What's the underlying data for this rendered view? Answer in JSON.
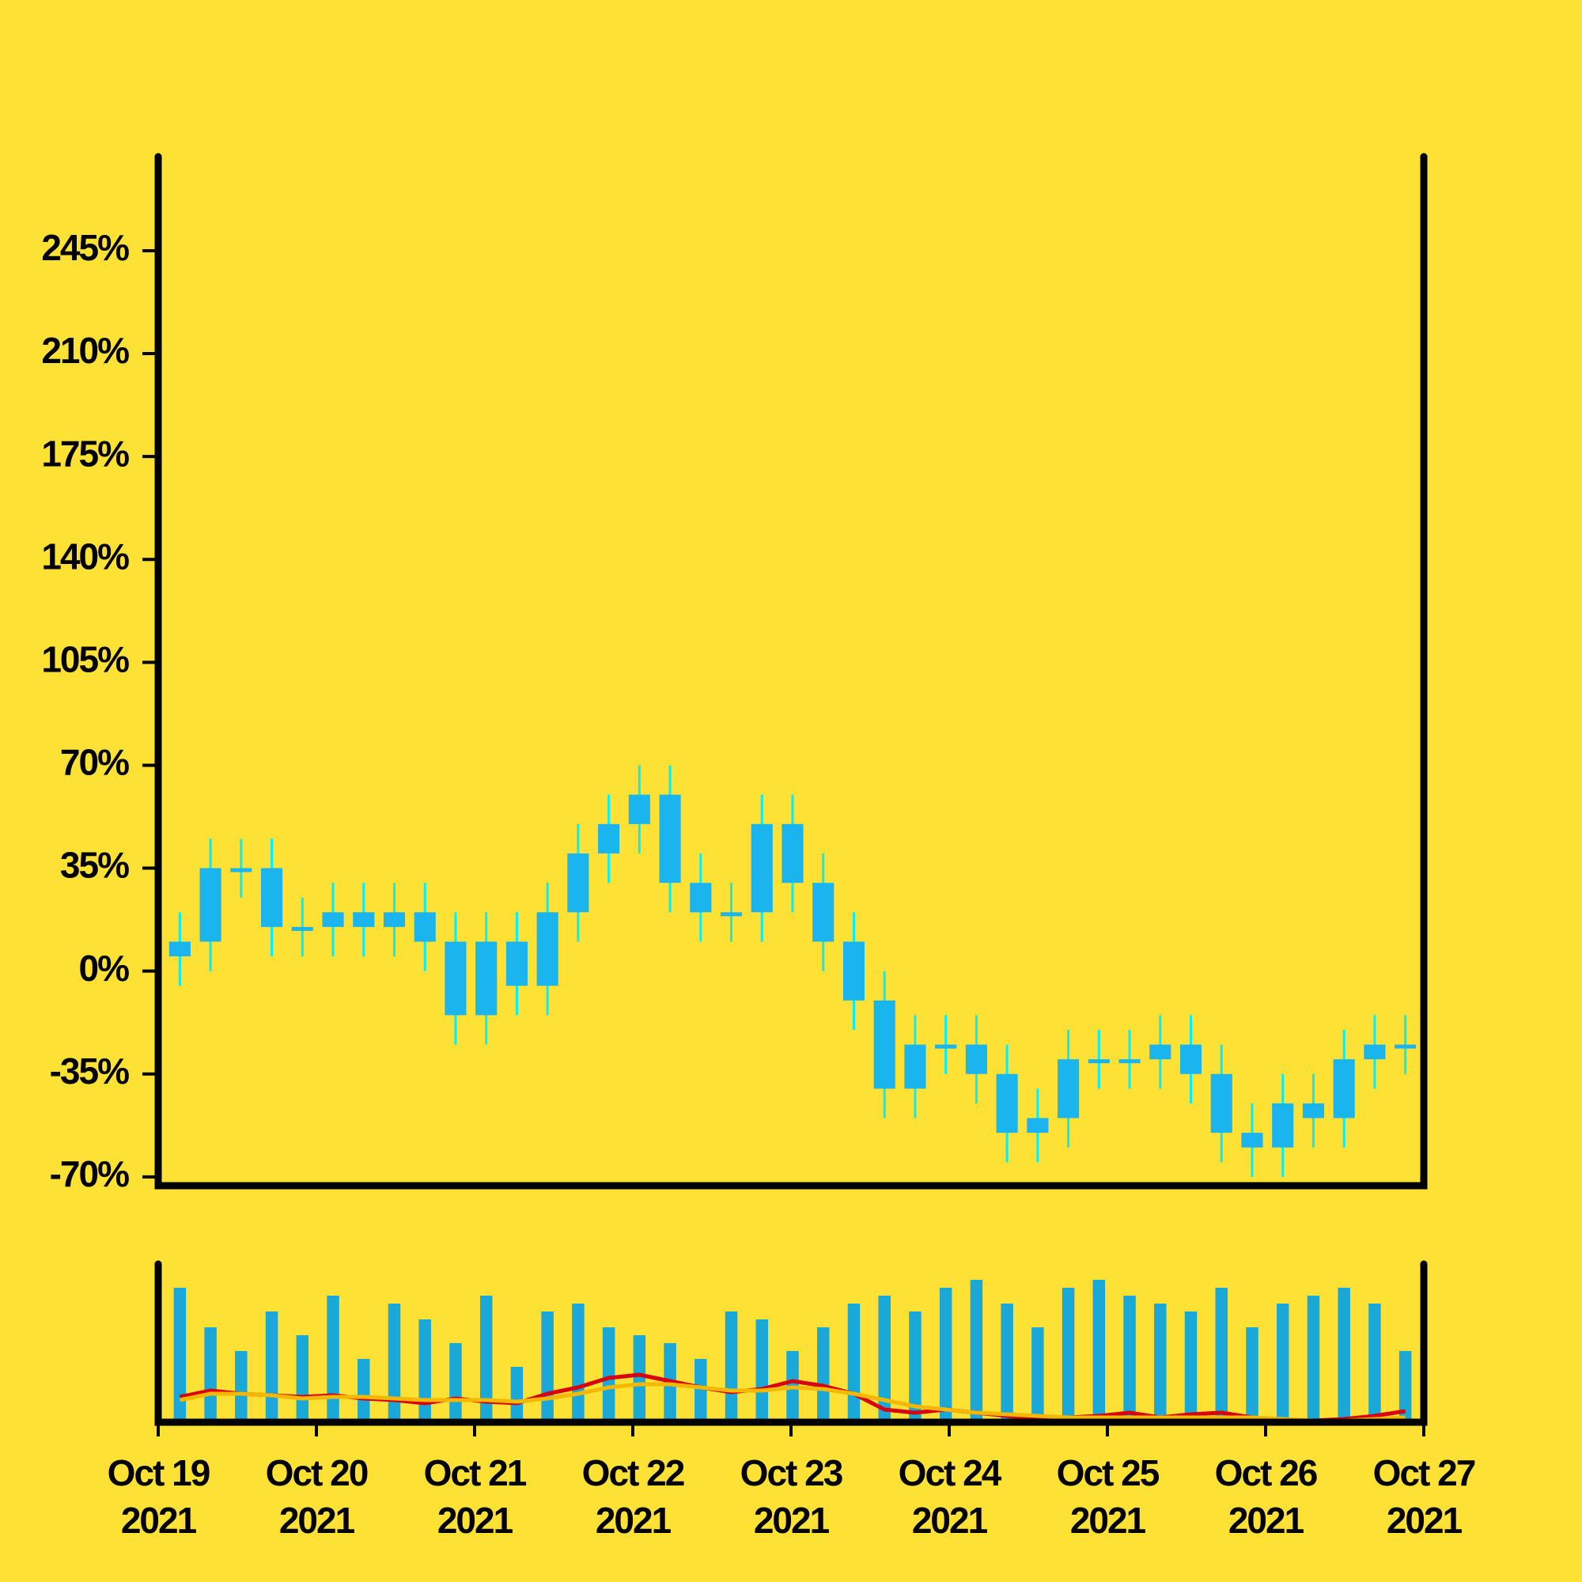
{
  "chart_data": [
    {
      "type": "candlestick",
      "body_color": "#1ab4ee",
      "wick_color": "#00f0ff",
      "open": [
        5,
        10,
        35,
        35,
        15,
        15,
        20,
        15,
        20,
        10,
        -15,
        10,
        -5,
        20,
        40,
        50,
        60,
        30,
        20,
        20,
        50,
        30,
        10,
        -10,
        -40,
        -25,
        -25,
        -35,
        -55,
        -50,
        -30,
        -30,
        -30,
        -25,
        -35,
        -55,
        -60,
        -45,
        -50,
        -30,
        -25
      ],
      "high": [
        20,
        45,
        45,
        45,
        25,
        30,
        30,
        30,
        30,
        20,
        20,
        20,
        30,
        50,
        60,
        70,
        70,
        40,
        30,
        60,
        60,
        40,
        20,
        0,
        -15,
        -15,
        -15,
        -25,
        -40,
        -20,
        -20,
        -20,
        -15,
        -15,
        -25,
        -45,
        -35,
        -35,
        -20,
        -15,
        -15
      ],
      "low": [
        -5,
        0,
        25,
        5,
        5,
        5,
        5,
        5,
        0,
        -25,
        -25,
        -15,
        -15,
        10,
        30,
        40,
        20,
        10,
        10,
        10,
        20,
        0,
        -20,
        -50,
        -50,
        -35,
        -45,
        -65,
        -65,
        -60,
        -40,
        -40,
        -40,
        -45,
        -65,
        -70,
        -70,
        -60,
        -60,
        -40,
        -35
      ],
      "close": [
        10,
        35,
        35,
        15,
        15,
        20,
        15,
        20,
        10,
        -15,
        10,
        -5,
        20,
        40,
        50,
        60,
        30,
        20,
        20,
        50,
        30,
        10,
        -10,
        -40,
        -25,
        -25,
        -35,
        -55,
        -50,
        -30,
        -30,
        -30,
        -25,
        -35,
        -55,
        -60,
        -45,
        -50,
        -30,
        -25,
        -25
      ],
      "ylim": [
        -73,
        277
      ],
      "yticks": [
        {
          "value": -70,
          "label": "-70%"
        },
        {
          "value": -35,
          "label": "-35%"
        },
        {
          "value": 0,
          "label": "0%"
        },
        {
          "value": 35,
          "label": "35%"
        },
        {
          "value": 70,
          "label": "70%"
        },
        {
          "value": 105,
          "label": "105%"
        },
        {
          "value": 140,
          "label": "140%"
        },
        {
          "value": 175,
          "label": "175%"
        },
        {
          "value": 210,
          "label": "210%"
        },
        {
          "value": 245,
          "label": "245%"
        }
      ]
    },
    {
      "type": "volume",
      "color": "#1aa8d8",
      "values": [
        85,
        60,
        45,
        70,
        55,
        80,
        40,
        75,
        65,
        50,
        80,
        35,
        70,
        75,
        60,
        55,
        50,
        40,
        70,
        65,
        45,
        60,
        75,
        80,
        70,
        85,
        90,
        75,
        60,
        85,
        90,
        80,
        75,
        70,
        85,
        60,
        75,
        80,
        85,
        75,
        45
      ],
      "lines": [
        {
          "color": "#d9000f",
          "values": [
            16,
            20,
            18,
            17,
            16,
            17,
            15,
            14,
            12,
            15,
            13,
            12,
            18,
            22,
            28,
            30,
            26,
            22,
            19,
            21,
            26,
            23,
            18,
            8,
            6,
            8,
            6,
            4,
            2,
            3,
            4,
            6,
            3,
            5,
            6,
            3,
            1,
            1,
            2,
            4,
            7
          ]
        },
        {
          "color": "#f5b800",
          "values": [
            14,
            18,
            18,
            17,
            15,
            16,
            16,
            15,
            14,
            14,
            14,
            13,
            15,
            18,
            22,
            24,
            24,
            22,
            20,
            20,
            22,
            21,
            18,
            14,
            10,
            8,
            6,
            5,
            4,
            3,
            3,
            3,
            3,
            3,
            3,
            3,
            2,
            1,
            1,
            2,
            3
          ]
        }
      ],
      "ylim": [
        0,
        100
      ],
      "xlim": [
        "2021-10-19",
        "2021-10-27"
      ],
      "xticks": [
        {
          "value": "2021-10-19",
          "label": [
            "Oct 19",
            "2021"
          ]
        },
        {
          "value": "2021-10-20",
          "label": [
            "Oct 20",
            "2021"
          ]
        },
        {
          "value": "2021-10-21",
          "label": [
            "Oct 21",
            "2021"
          ]
        },
        {
          "value": "2021-10-22",
          "label": [
            "Oct 22",
            "2021"
          ]
        },
        {
          "value": "2021-10-23",
          "label": [
            "Oct 23",
            "2021"
          ]
        },
        {
          "value": "2021-10-24",
          "label": [
            "Oct 24",
            "2021"
          ]
        },
        {
          "value": "2021-10-25",
          "label": [
            "Oct 25",
            "2021"
          ]
        },
        {
          "value": "2021-10-26",
          "label": [
            "Oct 26",
            "2021"
          ]
        },
        {
          "value": "2021-10-27",
          "label": [
            "Oct 27",
            "2021"
          ]
        }
      ]
    }
  ]
}
